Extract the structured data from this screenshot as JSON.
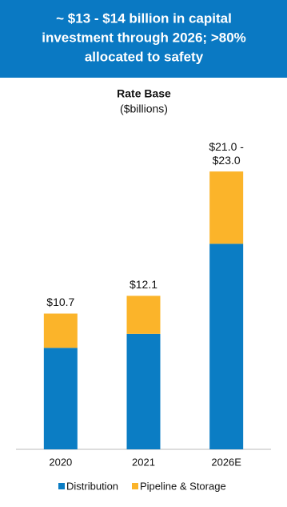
{
  "banner": [
    "~ $13 - $14 billion in capital",
    "investment through 2026; >80%",
    "allocated to safety"
  ],
  "chart_data": {
    "type": "stacked_bar",
    "title": "Rate Base",
    "subtitle": "($billions)",
    "categories": [
      "2020",
      "2021",
      "2026E"
    ],
    "series": [
      {
        "name": "Distribution",
        "color": "#0b7dc4",
        "values": [
          8.0,
          9.1,
          16.2
        ]
      },
      {
        "name": "Pipeline & Storage",
        "color": "#fbb42a",
        "values": [
          2.7,
          3.0,
          5.7
        ]
      }
    ],
    "total_labels": [
      [
        "$10.7"
      ],
      [
        "$12.1"
      ],
      [
        "$21.0 -",
        "$23.0"
      ]
    ],
    "ylim": [
      0,
      25
    ],
    "legend": "bottom"
  }
}
